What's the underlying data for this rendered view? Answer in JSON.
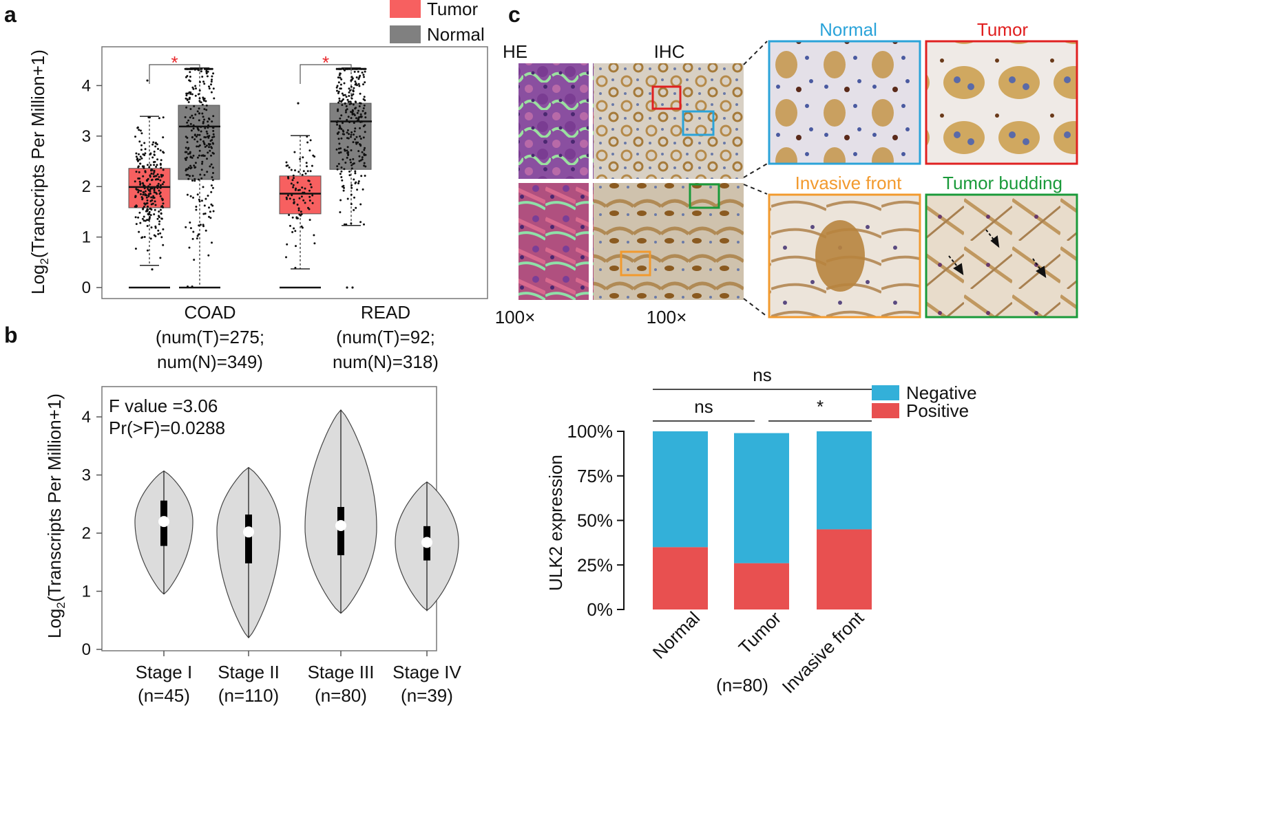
{
  "panels": {
    "a": "a",
    "b": "b",
    "c": "c"
  },
  "colors": {
    "tumor": "#f76060",
    "normal": "#808080",
    "negative": "#33b0d9",
    "positive": "#e85050",
    "violin": "#dcdcdc",
    "sig": "#e8262a",
    "frame_normal": "#2aa3d9",
    "frame_tumor": "#e02020",
    "frame_invasive": "#f29a2e",
    "frame_budding": "#1a9a3a"
  },
  "chart_data": [
    {
      "id": "panel-a",
      "type": "boxplot",
      "ylabel": "Log",
      "ylabel_sub": "2",
      "ylabel_rest": "(Transcripts Per Million+1)",
      "ylim": [
        0,
        4.6
      ],
      "yticks": [
        0,
        1,
        2,
        3,
        4
      ],
      "legend": {
        "placement": "top-right",
        "entries": [
          "Tumor",
          "Normal"
        ]
      },
      "groups": [
        {
          "name": "COAD",
          "line1": "(num(T)=275;",
          "line2": "num(N)=349)",
          "significance": "*",
          "boxes": [
            {
              "series": "Tumor",
              "q1": 1.58,
              "median": 1.99,
              "q3": 2.36,
              "whisker_low": 0.44,
              "whisker_high": 3.39,
              "outlier_low": 0.36,
              "outlier_high": 4.1
            },
            {
              "series": "Normal",
              "q1": 2.14,
              "median": 3.19,
              "q3": 3.61,
              "whisker_low": 0.0,
              "whisker_high": 4.35
            }
          ]
        },
        {
          "name": "READ",
          "line1": "(num(T)=92;",
          "line2": "num(N)=318)",
          "significance": "*",
          "boxes": [
            {
              "series": "Tumor",
              "q1": 1.46,
              "median": 1.86,
              "q3": 2.21,
              "whisker_low": 0.37,
              "whisker_high": 3.01,
              "outlier_high": 3.65
            },
            {
              "series": "Normal",
              "q1": 2.34,
              "median": 3.29,
              "q3": 3.65,
              "whisker_low": 1.23,
              "whisker_high": 4.35
            }
          ]
        }
      ]
    },
    {
      "id": "panel-b",
      "type": "violin",
      "ylabel": "Log",
      "ylabel_sub": "2",
      "ylabel_rest": "(Transcripts Per Million+1)",
      "ylim": [
        0,
        4.6
      ],
      "yticks": [
        0,
        1,
        2,
        3,
        4
      ],
      "annotations": [
        "F value =3.06",
        "Pr(>F)=0.0288"
      ],
      "groups": [
        {
          "name": "Stage I",
          "n": "(n=45)",
          "min": 0.95,
          "max": 3.07,
          "q1": 1.78,
          "median": 2.2,
          "q3": 2.56,
          "widest": 2.2,
          "width": 0.9
        },
        {
          "name": "Stage II",
          "n": "(n=110)",
          "min": 0.2,
          "max": 3.13,
          "q1": 1.48,
          "median": 2.02,
          "q3": 2.32,
          "widest": 2.05,
          "width": 0.9
        },
        {
          "name": "Stage III",
          "n": "(n=80)",
          "min": 0.62,
          "max": 4.12,
          "q1": 1.62,
          "median": 2.13,
          "q3": 2.45,
          "widest": 2.1,
          "width": 1.0
        },
        {
          "name": "Stage IV",
          "n": "(n=39)",
          "min": 0.67,
          "max": 2.88,
          "q1": 1.53,
          "median": 1.84,
          "q3": 2.12,
          "widest": 1.85,
          "width": 0.9
        }
      ]
    },
    {
      "id": "panel-c-bars",
      "type": "bar",
      "stacked": true,
      "ylabel": "ULK2 expression",
      "xnote": "(n=80)",
      "ylim": [
        0,
        100
      ],
      "yticks": [
        "0%",
        "25%",
        "50%",
        "75%",
        "100%"
      ],
      "categories": [
        "Normal",
        "Tumor",
        "Invasive front"
      ],
      "legend": {
        "placement": "top-right",
        "entries": [
          "Negative",
          "Positive"
        ]
      },
      "series": [
        {
          "name": "Positive",
          "values": [
            35,
            26,
            45
          ]
        },
        {
          "name": "Negative",
          "values": [
            65,
            73,
            55
          ]
        }
      ],
      "comparisons": [
        {
          "from": 0,
          "to": 2,
          "label": "ns"
        },
        {
          "from": 0,
          "to": 1,
          "label": "ns"
        },
        {
          "from": 1,
          "to": 2,
          "label": "*"
        }
      ]
    }
  ],
  "micrographs": {
    "col_he": "HE",
    "col_ihc": "IHC",
    "mag_he": "100×",
    "mag_ihc": "100×",
    "zoom_labels": [
      "Normal",
      "Tumor",
      "Invasive front",
      "Tumor budding"
    ]
  }
}
